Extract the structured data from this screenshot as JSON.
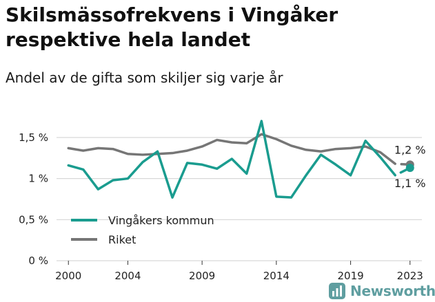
{
  "chart_data": {
    "type": "line",
    "title": "Skilsmässofrekvens i Vingåker respektive hela landet",
    "subtitle": "Andel av de gifta som skiljer sig varje år",
    "x": [
      2000,
      2001,
      2002,
      2003,
      2004,
      2005,
      2006,
      2007,
      2008,
      2009,
      2010,
      2011,
      2012,
      2013,
      2014,
      2015,
      2016,
      2017,
      2018,
      2019,
      2020,
      2021,
      2022,
      2023
    ],
    "x_ticks": [
      "2000",
      "2004",
      "2009",
      "2014",
      "2019",
      "2023"
    ],
    "y_ticks": [
      "0 %",
      "0,5 %",
      "1 %",
      "1,5 %"
    ],
    "ylim": [
      0,
      1.75
    ],
    "grid": true,
    "legend_position": "bottom-left",
    "series": [
      {
        "name": "Vingåkers kommun",
        "color": "#1a9c8f",
        "values": [
          1.16,
          1.11,
          0.87,
          0.98,
          1.0,
          1.2,
          1.33,
          0.77,
          1.19,
          1.17,
          1.12,
          1.24,
          1.06,
          1.7,
          0.78,
          0.77,
          1.04,
          1.29,
          1.17,
          1.04,
          1.46,
          1.26,
          1.04,
          1.13
        ],
        "end_label": "1,1 %"
      },
      {
        "name": "Riket",
        "color": "#767676",
        "values": [
          1.37,
          1.34,
          1.37,
          1.36,
          1.3,
          1.29,
          1.3,
          1.31,
          1.34,
          1.39,
          1.47,
          1.44,
          1.43,
          1.54,
          1.48,
          1.4,
          1.35,
          1.33,
          1.36,
          1.37,
          1.39,
          1.32,
          1.18,
          1.17
        ],
        "end_label": "1,2 %"
      }
    ]
  },
  "brand": {
    "name": "Newsworthy",
    "logo_icon": "newsworthy-chart-icon",
    "color": "#5f9ea0"
  }
}
